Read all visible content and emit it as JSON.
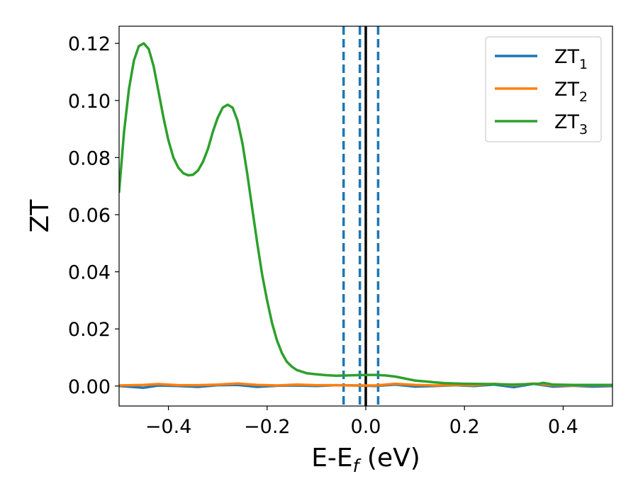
{
  "chart_data": {
    "type": "line",
    "title": "",
    "xlabel": {
      "main": "E-E",
      "sub": "f",
      "unit": " (eV)"
    },
    "ylabel": "ZT",
    "xlim": [
      -0.5,
      0.5
    ],
    "ylim": [
      -0.007,
      0.126
    ],
    "x_ticks": [
      -0.4,
      -0.2,
      0.0,
      0.2,
      0.4
    ],
    "x_tick_labels": [
      "−0.4",
      "−0.2",
      "0.0",
      "0.2",
      "0.4"
    ],
    "y_ticks": [
      0.0,
      0.02,
      0.04,
      0.06,
      0.08,
      0.1,
      0.12
    ],
    "y_tick_labels": [
      "0.00",
      "0.02",
      "0.04",
      "0.06",
      "0.08",
      "0.10",
      "0.12"
    ],
    "grid": false,
    "legend_position": "top-right",
    "vertical_lines": [
      {
        "x": -0.045,
        "style": "dashed",
        "color": "#1f77b4"
      },
      {
        "x": -0.012,
        "style": "dashed",
        "color": "#1f77b4"
      },
      {
        "x": 0.0,
        "style": "solid",
        "color": "#000000"
      },
      {
        "x": 0.025,
        "style": "dashed",
        "color": "#1f77b4"
      }
    ],
    "series": [
      {
        "name": "ZT",
        "name_sub": "1",
        "color": "#1f77b4",
        "x": [
          -0.5,
          -0.45,
          -0.42,
          -0.38,
          -0.34,
          -0.3,
          -0.26,
          -0.22,
          -0.18,
          -0.14,
          -0.1,
          -0.06,
          -0.02,
          0.02,
          0.06,
          0.1,
          0.14,
          0.18,
          0.22,
          0.26,
          0.3,
          0.34,
          0.38,
          0.42,
          0.46,
          0.5
        ],
        "y": [
          0.0,
          -0.0006,
          0.0002,
          0.0,
          -0.0003,
          0.0003,
          0.0004,
          -0.0003,
          0.0001,
          0.0002,
          0.0,
          0.0003,
          0.0002,
          0.0,
          0.0005,
          -0.0002,
          0.0,
          0.0003,
          0.0,
          0.0005,
          -0.0004,
          0.0008,
          -0.0002,
          0.0001,
          -0.0002,
          0.0
        ]
      },
      {
        "name": "ZT",
        "name_sub": "2",
        "color": "#ff7f0e",
        "x": [
          -0.5,
          -0.45,
          -0.42,
          -0.38,
          -0.34,
          -0.3,
          -0.26,
          -0.22,
          -0.18,
          -0.14,
          -0.1,
          -0.06,
          -0.02,
          0.02,
          0.06,
          0.1,
          0.14,
          0.18,
          0.22,
          0.26,
          0.3,
          0.34,
          0.38,
          0.42,
          0.46,
          0.5
        ],
        "y": [
          0.0002,
          0.0004,
          0.0007,
          0.0003,
          0.0003,
          0.0005,
          0.0009,
          0.0004,
          0.0002,
          0.0005,
          0.0003,
          0.0003,
          0.0002,
          0.0002,
          0.0008,
          0.0004,
          0.0002,
          0.0004,
          0.0003,
          0.0008,
          0.0003,
          0.0009,
          0.0003,
          0.0002,
          0.0003,
          0.0003
        ]
      },
      {
        "name": "ZT",
        "name_sub": "3",
        "color": "#2ca02c",
        "x": [
          -0.5,
          -0.49,
          -0.48,
          -0.47,
          -0.46,
          -0.45,
          -0.44,
          -0.43,
          -0.42,
          -0.41,
          -0.4,
          -0.39,
          -0.38,
          -0.37,
          -0.36,
          -0.35,
          -0.34,
          -0.33,
          -0.32,
          -0.31,
          -0.3,
          -0.29,
          -0.28,
          -0.27,
          -0.26,
          -0.25,
          -0.24,
          -0.23,
          -0.22,
          -0.21,
          -0.2,
          -0.19,
          -0.18,
          -0.17,
          -0.16,
          -0.15,
          -0.14,
          -0.12,
          -0.1,
          -0.08,
          -0.06,
          -0.04,
          -0.02,
          0.0,
          0.02,
          0.04,
          0.06,
          0.08,
          0.1,
          0.12,
          0.14,
          0.16,
          0.2,
          0.25,
          0.3,
          0.35,
          0.36,
          0.38,
          0.42,
          0.5
        ],
        "y": [
          0.068,
          0.089,
          0.104,
          0.114,
          0.119,
          0.12,
          0.118,
          0.112,
          0.103,
          0.094,
          0.086,
          0.08,
          0.0765,
          0.0745,
          0.0738,
          0.074,
          0.0755,
          0.0785,
          0.083,
          0.089,
          0.094,
          0.0975,
          0.0985,
          0.0975,
          0.093,
          0.085,
          0.074,
          0.062,
          0.05,
          0.039,
          0.03,
          0.022,
          0.016,
          0.0115,
          0.0085,
          0.0068,
          0.0056,
          0.0045,
          0.0041,
          0.0038,
          0.0036,
          0.0037,
          0.0038,
          0.0039,
          0.0039,
          0.0037,
          0.0033,
          0.0026,
          0.0019,
          0.0016,
          0.0013,
          0.001,
          0.0008,
          0.0007,
          0.0005,
          0.0008,
          0.0011,
          0.0005,
          0.0004,
          0.0004
        ]
      }
    ]
  }
}
